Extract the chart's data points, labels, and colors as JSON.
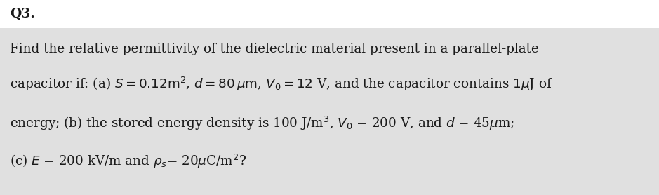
{
  "page_background": "#ffffff",
  "box_bg": "#e0e0e0",
  "text_color": "#1a1a1a",
  "title": "Q3.",
  "title_fontsize": 13.5,
  "body_fontsize": 13.2,
  "font_family": "DejaVu Serif",
  "line1": "Find the relative permittivity of the dielectric material present in a parallel-plate",
  "line2": "capacitor if: (a) $S = 0.12\\mathrm{m}^2$, $d = 80\\,\\mu\\mathrm{m}$, $V_0 = 12$ V, and the capacitor contains $1\\mu$J of",
  "line3": "energy; (b) the stored energy density is 100 J/m$^3$, $V_0$ = 200 V, and $d$ = 45$\\mu$m;",
  "line4": "(c) $E$ = 200 kV/m and $\\rho_s$= 20$\\mu$C/m$^2$?"
}
